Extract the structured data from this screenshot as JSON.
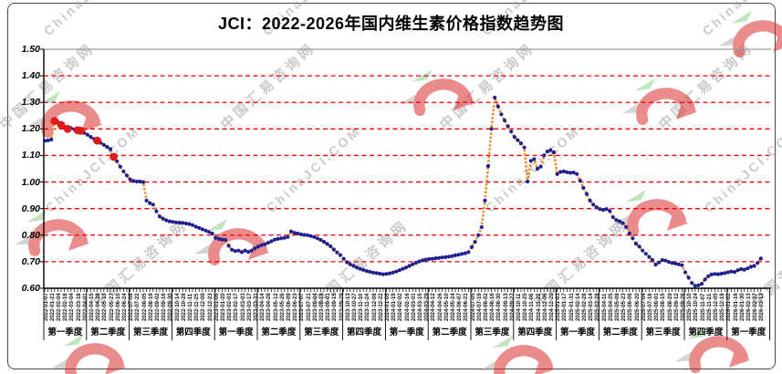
{
  "title": "JCI：2022-2026年国内维生素价格指数趋势图",
  "watermark": {
    "text_cn": "中国汇易咨询网",
    "text_en": "ChinaJCI.COM"
  },
  "chart_data": {
    "type": "line",
    "title": "JCI：2022-2026年国内维生素价格指数趋势图",
    "ylim": [
      0.6,
      1.5
    ],
    "grid": "horizontal-red-dashed",
    "legend": "none",
    "y_ticks": [
      "1.50",
      "1.40",
      "1.30",
      "1.20",
      "1.10",
      "1.00",
      "0.90",
      "0.80",
      "0.70",
      "0.60"
    ],
    "quarter_labels": [
      "第一季度",
      "第二季度",
      "第三季度",
      "第四季度",
      "第一季度",
      "第二季度",
      "第三季度",
      "第四季度",
      "第一季度",
      "第二季度",
      "第三季度",
      "第四季度",
      "第一季度",
      "第二季度",
      "第三季度",
      "第四季度",
      "第一季度"
    ],
    "x_tick_labels": [
      "2022-01-07",
      "2022-01-21",
      "2022-02-04",
      "2022-02-18",
      "2022-03-04",
      "2022-03-18",
      "2022-04-01",
      "2022-04-15",
      "2022-04-29",
      "2022-05-13",
      "2022-05-27",
      "2022-06-10",
      "2022-06-24",
      "2022-07-08",
      "2022-07-22",
      "2022-08-05",
      "2022-08-19",
      "2022-09-02",
      "2022-09-16",
      "2022-09-30",
      "2022-10-14",
      "2022-10-28",
      "2022-11-11",
      "2022-11-25",
      "2022-12-09",
      "2022-12-23",
      "2023-01-06",
      "2023-01-20",
      "2023-02-03",
      "2023-02-17",
      "2023-03-03",
      "2023-03-17",
      "2023-03-31",
      "2023-04-14",
      "2023-04-28",
      "2023-05-12",
      "2023-05-26",
      "2023-06-09",
      "2023-06-23",
      "2023-07-07",
      "2023-07-21",
      "2023-08-04",
      "2023-08-18",
      "2023-09-01",
      "2023-09-15",
      "2023-09-29",
      "2023-10-13",
      "2023-10-27",
      "2023-11-10",
      "2023-11-24",
      "2023-12-08",
      "2023-12-22",
      "2024-01-05",
      "2024-01-19",
      "2024-02-02",
      "2024-02-16",
      "2024-03-01",
      "2024-03-15",
      "2024-03-29",
      "2024-04-12",
      "2024-04-26",
      "2024-05-10",
      "2024-05-24",
      "2024-06-07",
      "2024-06-21",
      "2024-07-05",
      "2024-07-19",
      "2024-08-02",
      "2024-08-16",
      "2024-08-30",
      "2024-09-13",
      "2024-09-27",
      "2024-10-11",
      "2024-10-25",
      "2024-11-08",
      "2024-11-22",
      "2024-12-06",
      "2024-12-20",
      "2025-01-03",
      "2025-01-17",
      "2025-01-31",
      "2025-02-14",
      "2025-02-28",
      "2025-03-14",
      "2025-03-28",
      "2025-04-11",
      "2025-04-25",
      "2025-05-09",
      "2025-05-23",
      "2025-06-06",
      "2025-06-20",
      "2025-07-04",
      "2025-07-18",
      "2025-08-01",
      "2025-08-15",
      "2025-08-29",
      "2025-09-12",
      "2025-09-26",
      "2025-10-10",
      "2025-10-24",
      "2025-11-07",
      "2025-11-21",
      "2025-12-05",
      "2025-12-19",
      "2026-01-02",
      "2026-01-16",
      "2026-01-30",
      "2026-02-13",
      "2026-02-27",
      "2026-03-13"
    ],
    "series": [
      {
        "frequency": "weekly",
        "values": [
          1.155,
          1.157,
          1.16,
          1.23,
          1.225,
          1.215,
          1.208,
          1.2,
          1.203,
          1.198,
          1.195,
          1.193,
          1.185,
          1.178,
          1.17,
          1.162,
          1.156,
          1.148,
          1.14,
          1.132,
          1.124,
          1.095,
          1.078,
          1.058,
          1.04,
          1.025,
          1.01,
          1.004,
          1.002,
          1.002,
          1.0,
          0.93,
          0.921,
          0.915,
          0.89,
          0.87,
          0.862,
          0.856,
          0.852,
          0.85,
          0.848,
          0.847,
          0.846,
          0.844,
          0.842,
          0.838,
          0.832,
          0.827,
          0.822,
          0.817,
          0.812,
          0.806,
          0.79,
          0.786,
          0.783,
          0.782,
          0.76,
          0.745,
          0.74,
          0.742,
          0.736,
          0.742,
          0.737,
          0.742,
          0.75,
          0.757,
          0.762,
          0.766,
          0.771,
          0.777,
          0.783,
          0.786,
          0.788,
          0.79,
          0.793,
          0.814,
          0.809,
          0.806,
          0.803,
          0.801,
          0.8,
          0.797,
          0.793,
          0.788,
          0.782,
          0.775,
          0.767,
          0.758,
          0.746,
          0.735,
          0.725,
          0.711,
          0.698,
          0.69,
          0.684,
          0.678,
          0.673,
          0.669,
          0.665,
          0.662,
          0.659,
          0.657,
          0.655,
          0.653,
          0.654,
          0.656,
          0.659,
          0.663,
          0.668,
          0.673,
          0.678,
          0.684,
          0.69,
          0.696,
          0.701,
          0.705,
          0.708,
          0.71,
          0.711,
          0.713,
          0.714,
          0.716,
          0.717,
          0.719,
          0.721,
          0.724,
          0.726,
          0.729,
          0.732,
          0.736,
          0.755,
          0.775,
          0.8,
          0.83,
          0.93,
          1.06,
          1.2,
          1.318,
          1.285,
          1.255,
          1.232,
          1.21,
          1.19,
          1.17,
          1.158,
          1.146,
          1.13,
          1.002,
          1.08,
          1.086,
          1.05,
          1.058,
          1.1,
          1.115,
          1.12,
          1.112,
          1.03,
          1.038,
          1.04,
          1.037,
          1.035,
          1.036,
          1.03,
          1.005,
          0.978,
          0.955,
          0.93,
          0.915,
          0.905,
          0.898,
          0.895,
          0.898,
          0.891,
          0.868,
          0.857,
          0.852,
          0.845,
          0.831,
          0.806,
          0.788,
          0.768,
          0.757,
          0.742,
          0.73,
          0.718,
          0.706,
          0.689,
          0.697,
          0.706,
          0.704,
          0.699,
          0.695,
          0.693,
          0.69,
          0.687,
          0.66,
          0.64,
          0.62,
          0.609,
          0.611,
          0.617,
          0.633,
          0.645,
          0.652,
          0.654,
          0.653,
          0.655,
          0.657,
          0.66,
          0.663,
          0.661,
          0.668,
          0.672,
          0.67,
          0.675,
          0.681,
          0.684,
          0.695,
          0.712
        ]
      }
    ],
    "highlight_indices": [
      3,
      5,
      7,
      10,
      11,
      16,
      21
    ],
    "colors": {
      "grid_dashed": "#ee0000",
      "top_border": "#9a9a9a",
      "axis": "#000000",
      "line": "#e8923c",
      "point": "#1e2090",
      "highlight_point": "#e31a1a"
    }
  }
}
